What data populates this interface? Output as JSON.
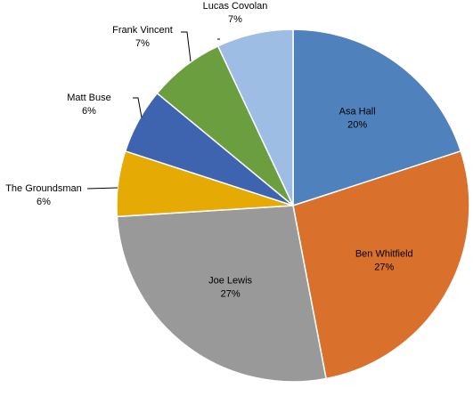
{
  "chart_data": {
    "type": "pie",
    "title": "",
    "legend": "none",
    "slices": [
      {
        "name": "Asa Hall",
        "label": "20%",
        "value": 20,
        "color": "#4F81BD"
      },
      {
        "name": "Ben Whitfield",
        "label": "27%",
        "value": 27,
        "color": "#D9702B"
      },
      {
        "name": "Joe Lewis",
        "label": "27%",
        "value": 27,
        "color": "#999999"
      },
      {
        "name": "The Groundsman",
        "label": "6%",
        "value": 6,
        "color": "#E6AA05"
      },
      {
        "name": "Matt Buse",
        "label": "6%",
        "value": 6,
        "color": "#3E63AF"
      },
      {
        "name": "Frank Vincent",
        "label": "7%",
        "value": 7,
        "color": "#6A9E3F"
      },
      {
        "name": "Lucas Covolan",
        "label": "7%",
        "value": 7,
        "color": "#9EBDE4"
      }
    ]
  }
}
